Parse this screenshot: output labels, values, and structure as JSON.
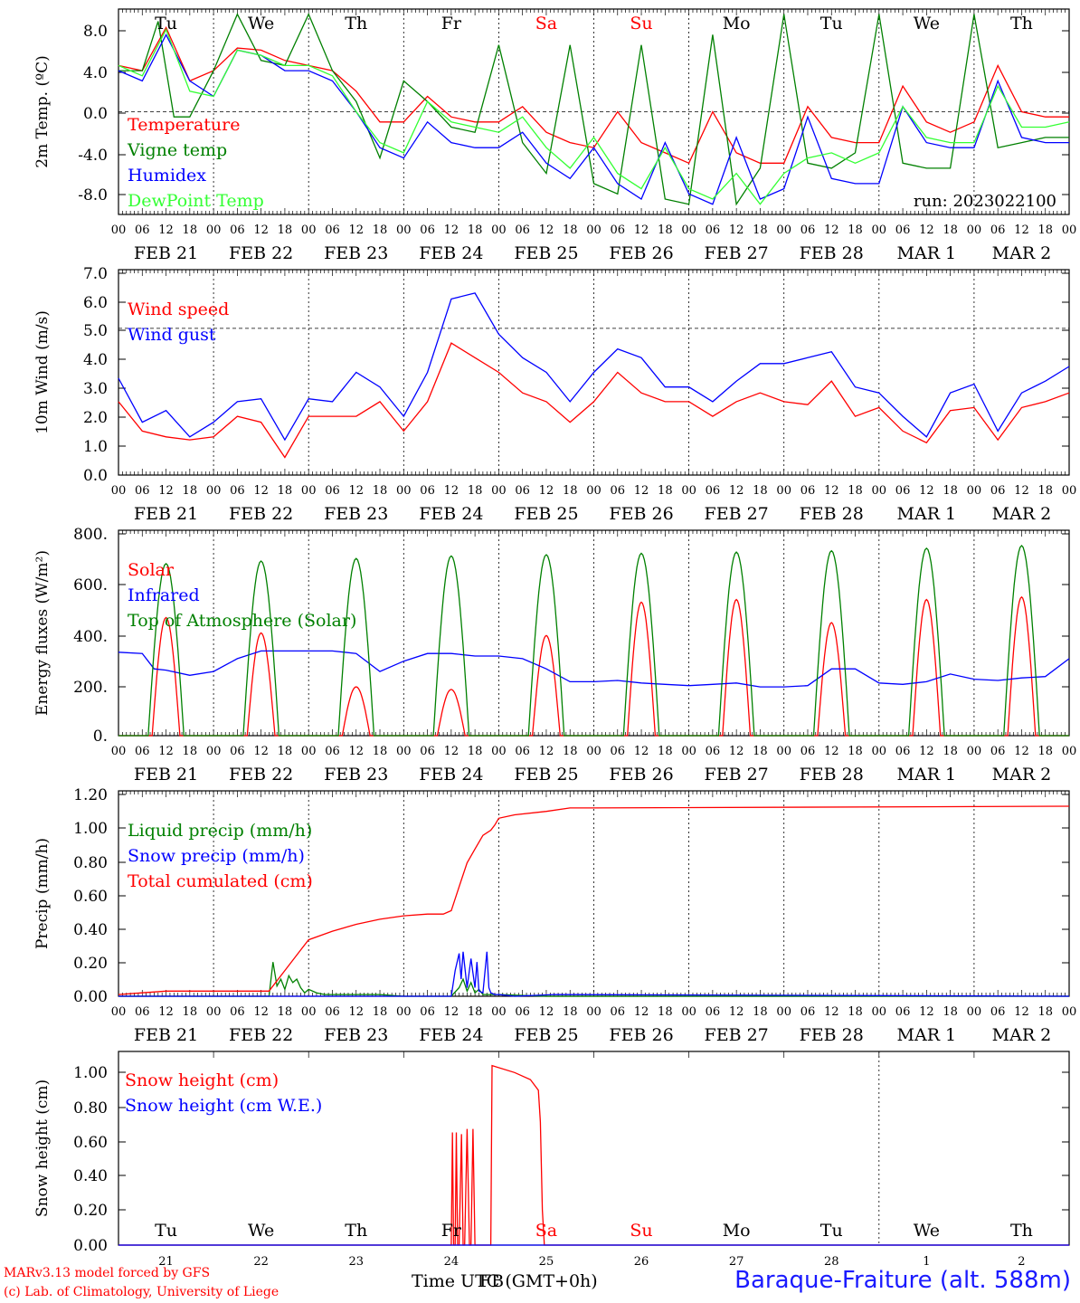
{
  "chart_data": [
    {
      "type": "line",
      "ylabel": "2m Temp. (ºC)",
      "yticks": [
        "8.0",
        "4.0",
        "0.0",
        "-4.0",
        "-8.0"
      ],
      "ylim": [
        -10,
        10
      ],
      "dashed_ref": 0,
      "run_label": "run: 2023022100",
      "series": [
        {
          "name": "Temperature",
          "color": "#ff0000",
          "x": [
            0,
            6,
            12,
            18,
            24,
            30,
            36,
            42,
            48,
            54,
            60,
            66,
            72,
            78,
            84,
            90,
            96,
            102,
            108,
            114,
            120,
            126,
            132,
            138,
            144,
            150,
            156,
            162,
            168,
            174,
            180,
            186,
            192,
            198,
            204,
            210,
            216,
            222,
            228,
            234,
            240
          ],
          "y": [
            4.5,
            4.0,
            8.2,
            3.0,
            4.0,
            6.2,
            6.0,
            5.0,
            4.5,
            4.0,
            2.0,
            -1.0,
            -1.0,
            1.5,
            -0.5,
            -1.0,
            -1.0,
            0.5,
            -2.0,
            -3.0,
            -3.5,
            0.0,
            -3.0,
            -4.0,
            -5.0,
            0.0,
            -4.0,
            -5.0,
            -5.0,
            0.5,
            -2.5,
            -3.0,
            -3.0,
            2.5,
            -1.0,
            -2.0,
            -1.0,
            4.5,
            0.0,
            -0.5,
            -0.5
          ]
        },
        {
          "name": "Vigne temp",
          "color": "#008000",
          "x": [
            0,
            6,
            10,
            14,
            18,
            24,
            30,
            36,
            42,
            48,
            54,
            60,
            66,
            72,
            78,
            84,
            90,
            96,
            102,
            108,
            114,
            120,
            126,
            132,
            138,
            144,
            150,
            156,
            162,
            168,
            174,
            180,
            186,
            192,
            198,
            204,
            210,
            216,
            222,
            228,
            234,
            240
          ],
          "y": [
            4.0,
            4.0,
            8.8,
            -0.5,
            -0.5,
            4.0,
            9.5,
            5.0,
            4.5,
            9.5,
            4.0,
            1.0,
            -4.5,
            3.0,
            1.0,
            -1.5,
            -2.0,
            6.5,
            -3.0,
            -6.0,
            6.5,
            -7.0,
            -8.0,
            6.5,
            -8.5,
            -9.0,
            7.5,
            -9.0,
            -5.5,
            9.5,
            -5.0,
            -5.5,
            -4.0,
            9.5,
            -5.0,
            -5.5,
            -5.5,
            9.5,
            -3.5,
            -3.0,
            -2.5,
            -2.5
          ]
        },
        {
          "name": "Humidex",
          "color": "#0000ff",
          "x": [
            0,
            6,
            12,
            18,
            24,
            30,
            36,
            42,
            48,
            54,
            60,
            66,
            72,
            78,
            84,
            90,
            96,
            102,
            108,
            114,
            120,
            126,
            132,
            138,
            144,
            150,
            156,
            162,
            168,
            174,
            180,
            186,
            192,
            198,
            204,
            210,
            216,
            222,
            228,
            234,
            240
          ],
          "y": [
            4.0,
            3.0,
            7.5,
            3.0,
            1.5,
            6.0,
            5.5,
            4.0,
            4.0,
            3.0,
            0.0,
            -3.5,
            -4.5,
            -1.0,
            -3.0,
            -3.5,
            -3.5,
            -2.0,
            -5.0,
            -6.5,
            -3.5,
            -7.0,
            -8.5,
            -3.0,
            -8.0,
            -9.0,
            -2.5,
            -8.5,
            -7.5,
            -0.5,
            -6.5,
            -7.0,
            -7.0,
            0.5,
            -3.0,
            -3.5,
            -3.5,
            3.0,
            -2.5,
            -3.0,
            -3.0
          ]
        },
        {
          "name": "DewPoint Temp",
          "color": "#33ff33",
          "x": [
            0,
            6,
            12,
            18,
            24,
            30,
            36,
            42,
            48,
            54,
            60,
            66,
            72,
            78,
            84,
            90,
            96,
            102,
            108,
            114,
            120,
            126,
            132,
            138,
            144,
            150,
            156,
            162,
            168,
            174,
            180,
            186,
            192,
            198,
            204,
            210,
            216,
            222,
            228,
            234,
            240
          ],
          "y": [
            4.5,
            3.5,
            8.0,
            2.0,
            1.5,
            6.0,
            5.5,
            4.5,
            4.5,
            3.5,
            0.0,
            -3.0,
            -4.0,
            1.0,
            -1.0,
            -1.5,
            -2.0,
            -0.5,
            -3.5,
            -5.5,
            -2.5,
            -6.0,
            -7.5,
            -3.5,
            -7.5,
            -8.5,
            -6.0,
            -9.0,
            -6.0,
            -4.5,
            -4.0,
            -5.0,
            -4.0,
            0.5,
            -2.5,
            -3.0,
            -3.0,
            2.5,
            -1.5,
            -1.5,
            -1.0
          ]
        }
      ]
    },
    {
      "type": "line",
      "ylabel": "10m Wind (m/s)",
      "yticks": [
        "7.0",
        "6.0",
        "5.0",
        "4.0",
        "3.0",
        "2.0",
        "1.0",
        "0.0"
      ],
      "ylim": [
        0,
        7
      ],
      "dashed_ref": 5,
      "series": [
        {
          "name": "Wind speed",
          "color": "#ff0000",
          "x": [
            0,
            6,
            12,
            18,
            24,
            30,
            36,
            42,
            48,
            54,
            60,
            66,
            72,
            78,
            84,
            90,
            96,
            102,
            108,
            114,
            120,
            126,
            132,
            138,
            144,
            150,
            156,
            162,
            168,
            174,
            180,
            186,
            192,
            198,
            204,
            210,
            216,
            222,
            228,
            234,
            240
          ],
          "y": [
            2.5,
            1.5,
            1.3,
            1.2,
            1.3,
            2.0,
            1.8,
            0.6,
            2.0,
            2.0,
            2.0,
            2.5,
            1.5,
            2.5,
            4.5,
            4.0,
            3.5,
            2.8,
            2.5,
            1.8,
            2.5,
            3.5,
            2.8,
            2.5,
            2.5,
            2.0,
            2.5,
            2.8,
            2.5,
            2.4,
            3.2,
            2.0,
            2.3,
            1.5,
            1.1,
            2.2,
            2.3,
            1.2,
            2.3,
            2.5,
            2.8
          ]
        },
        {
          "name": "Wind gust",
          "color": "#0000ff",
          "x": [
            0,
            6,
            12,
            18,
            24,
            30,
            36,
            42,
            48,
            54,
            60,
            66,
            72,
            78,
            84,
            90,
            96,
            102,
            108,
            114,
            120,
            126,
            132,
            138,
            144,
            150,
            156,
            162,
            168,
            174,
            180,
            186,
            192,
            198,
            204,
            210,
            216,
            222,
            228,
            234,
            240
          ],
          "y": [
            3.3,
            1.8,
            2.2,
            1.3,
            1.8,
            2.5,
            2.6,
            1.2,
            2.6,
            2.5,
            3.5,
            3.0,
            2.0,
            3.5,
            6.0,
            6.2,
            4.8,
            4.0,
            3.5,
            2.5,
            3.5,
            4.3,
            4.0,
            3.0,
            3.0,
            2.5,
            3.2,
            3.8,
            3.8,
            4.0,
            4.2,
            3.0,
            2.8,
            2.0,
            1.3,
            2.8,
            3.1,
            1.5,
            2.8,
            3.2,
            3.7
          ]
        }
      ]
    },
    {
      "type": "line",
      "ylabel": "Energy fluxes (W/m²)",
      "yticks": [
        "800.",
        "600.",
        "400.",
        "200.",
        "0."
      ],
      "ylim": [
        0,
        800
      ],
      "series": [
        {
          "name": "Solar",
          "color": "#ff0000",
          "peaks": [
            460,
            400,
            190,
            180,
            390,
            520,
            530,
            440,
            530,
            540
          ]
        },
        {
          "name": "Infrared",
          "color": "#0000ff",
          "x": [
            0,
            6,
            9,
            12,
            18,
            24,
            30,
            36,
            42,
            48,
            54,
            60,
            66,
            72,
            78,
            84,
            90,
            96,
            102,
            108,
            114,
            120,
            126,
            132,
            138,
            144,
            150,
            156,
            162,
            168,
            174,
            180,
            186,
            192,
            198,
            204,
            210,
            216,
            222,
            228,
            234,
            240
          ],
          "y": [
            325,
            320,
            260,
            255,
            235,
            250,
            300,
            330,
            330,
            330,
            330,
            320,
            250,
            290,
            320,
            320,
            310,
            310,
            300,
            260,
            210,
            210,
            215,
            205,
            200,
            195,
            200,
            205,
            190,
            190,
            195,
            260,
            260,
            205,
            200,
            210,
            240,
            220,
            215,
            225,
            230,
            300
          ]
        },
        {
          "name": "Top of Atmosphere (Solar)",
          "color": "#008000",
          "peaks": [
            670,
            680,
            690,
            700,
            705,
            710,
            715,
            720,
            730,
            740
          ]
        }
      ]
    },
    {
      "type": "line",
      "ylabel": "Precip (mm/h)",
      "yticks": [
        "1.20",
        "1.00",
        "0.80",
        "0.60",
        "0.40",
        "0.20",
        "0.00"
      ],
      "ylim": [
        0,
        1.2
      ],
      "series": [
        {
          "name": "Liquid precip (mm/h)",
          "color": "#008000",
          "x": [
            0,
            38,
            39,
            40,
            41,
            42,
            43,
            44,
            45,
            46,
            47,
            48,
            50,
            52,
            54,
            60,
            66,
            72,
            84,
            86,
            87,
            88,
            89,
            90,
            91,
            92,
            96,
            108,
            240
          ],
          "y": [
            0,
            0,
            0.2,
            0.06,
            0.1,
            0.04,
            0.12,
            0.08,
            0.1,
            0.05,
            0.02,
            0.04,
            0.02,
            0.01,
            0.01,
            0.01,
            0.01,
            0,
            0,
            0.05,
            0.1,
            0.03,
            0.08,
            0.02,
            0.04,
            0.01,
            0.01,
            0,
            0
          ]
        },
        {
          "name": "Snow precip (mm/h)",
          "color": "#0000ff",
          "x": [
            0,
            84,
            85,
            86,
            86.5,
            87,
            88,
            89,
            90,
            90.5,
            91,
            92,
            93,
            93.5,
            94,
            95,
            96,
            100,
            110,
            240
          ],
          "y": [
            0,
            0,
            0.15,
            0.25,
            0.1,
            0.26,
            0.05,
            0.22,
            0.05,
            0.2,
            0.03,
            0.02,
            0.26,
            0.05,
            0.02,
            0.01,
            0.01,
            0,
            0.01,
            0
          ]
        },
        {
          "name": "Total cumulated (cm)",
          "color": "#ff0000",
          "x": [
            0,
            6,
            12,
            24,
            38,
            42,
            46,
            48,
            54,
            60,
            66,
            72,
            78,
            82,
            84,
            86,
            88,
            90,
            92,
            94,
            95,
            96,
            100,
            108,
            114,
            120,
            240
          ],
          "y": [
            0.01,
            0.02,
            0.03,
            0.03,
            0.03,
            0.15,
            0.27,
            0.33,
            0.38,
            0.42,
            0.45,
            0.47,
            0.48,
            0.48,
            0.5,
            0.64,
            0.78,
            0.86,
            0.94,
            0.97,
            1.0,
            1.04,
            1.06,
            1.08,
            1.1,
            1.1,
            1.11
          ]
        }
      ]
    },
    {
      "type": "line",
      "ylabel": "Snow height (cm)",
      "yticks": [
        "1.00",
        "0.80",
        "0.60",
        "0.40",
        "0.20",
        "0.00"
      ],
      "ylim": [
        0,
        1.1
      ],
      "series": [
        {
          "name": "Snow height (cm)",
          "color": "#ff0000",
          "x": [
            0,
            84,
            84.3,
            84.6,
            85,
            85.3,
            85.6,
            86,
            86.6,
            87,
            87.4,
            88,
            88.6,
            89,
            89.5,
            90,
            94,
            94.3,
            100,
            104,
            106,
            106.5,
            107,
            107.5,
            240
          ],
          "y": [
            0,
            0,
            0.64,
            0,
            0,
            0.64,
            0,
            0,
            0.63,
            0,
            0,
            0.66,
            0,
            0,
            0.66,
            0,
            0,
            1.02,
            0.98,
            0.94,
            0.88,
            0.7,
            0.2,
            0,
            0
          ]
        },
        {
          "name": "Snow height (cm W.E.)",
          "color": "#0000ff",
          "x": [
            0,
            240
          ],
          "y": [
            0,
            0
          ]
        }
      ]
    }
  ],
  "hour_ticks": [
    "00",
    "06",
    "12",
    "18"
  ],
  "date_labels": [
    "FEB 21",
    "FEB 22",
    "FEB 23",
    "FEB 24",
    "FEB 25",
    "FEB 26",
    "FEB 27",
    "FEB 28",
    "MAR  1",
    "MAR  2"
  ],
  "weekdays_top": [
    "Tu",
    "We",
    "Th",
    "Fr",
    "Sa",
    "Su",
    "Mo",
    "Tu",
    "We",
    "Th"
  ],
  "weekday_colors": [
    "#000000",
    "#000000",
    "#000000",
    "#000000",
    "#ff0000",
    "#ff0000",
    "#000000",
    "#000000",
    "#000000",
    "#000000"
  ],
  "bottom_day_numbers": [
    "21",
    "22",
    "23",
    "24",
    "25",
    "26",
    "27",
    "28",
    "1",
    "2"
  ],
  "time_label": "Time UTC (GMT+0h)",
  "overlay_label": "FB",
  "credit_line1": "MARv3.13 model forced by GFS",
  "credit_line2": "(c) Lab. of Climatology, University of Liege",
  "station": "Baraque-Fraiture (alt. 588m)"
}
